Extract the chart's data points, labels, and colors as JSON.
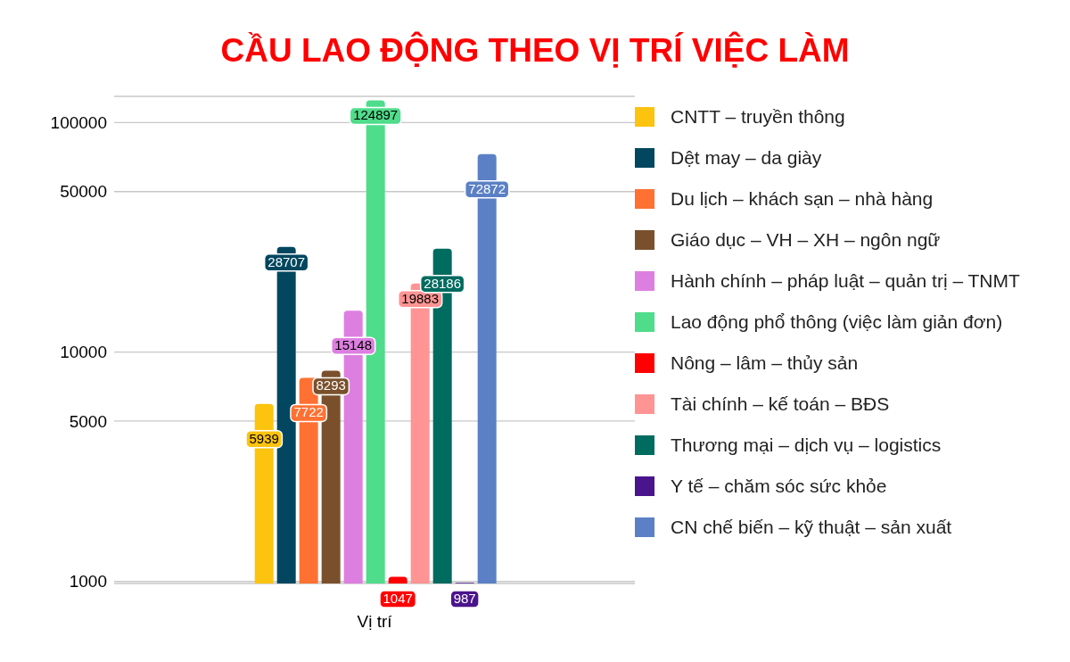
{
  "chart_data": {
    "type": "bar",
    "title": "CẦU LAO ĐỘNG THEO VỊ TRÍ VIỆC LÀM",
    "categories": [
      "Vị trí"
    ],
    "series": [
      {
        "name": "CNTT – truyền thông",
        "color": "#fcc30f",
        "values": [
          5939
        ]
      },
      {
        "name": "Dệt may – da giày",
        "color": "#02475f",
        "values": [
          28707
        ]
      },
      {
        "name": "Du lịch – khách sạn – nhà hàng",
        "color": "#ff7133",
        "values": [
          7722
        ]
      },
      {
        "name": "Giáo dục – VH – XH – ngôn ngữ",
        "color": "#7a502c",
        "values": [
          8293
        ]
      },
      {
        "name": "Hành chính – pháp luật – quản trị – TNMT",
        "color": "#dd7fe0",
        "values": [
          15148
        ]
      },
      {
        "name": "Lao động phổ thông (việc làm giản đơn)",
        "color": "#4fdc8b",
        "values": [
          124897
        ]
      },
      {
        "name": "Nông – lâm – thủy sản",
        "color": "#ff0000",
        "values": [
          1047
        ]
      },
      {
        "name": "Tài chính – kế toán – BĐS",
        "color": "#ff9494",
        "values": [
          19883
        ]
      },
      {
        "name": "Thương mại – dịch vụ – logistics",
        "color": "#006b5f",
        "values": [
          28186
        ]
      },
      {
        "name": "Y tế – chăm sóc sức khỏe",
        "color": "#4a148c",
        "values": [
          987
        ]
      },
      {
        "name": "CN chế biến – kỹ thuật – sản xuất",
        "color": "#5b80c5",
        "values": [
          72872
        ]
      }
    ],
    "log": true,
    "ylim": [
      980,
      130000
    ],
    "yticks": [
      1000,
      5000,
      10000,
      50000,
      100000
    ],
    "grid": "y",
    "legend": "right",
    "data_labels": true
  }
}
